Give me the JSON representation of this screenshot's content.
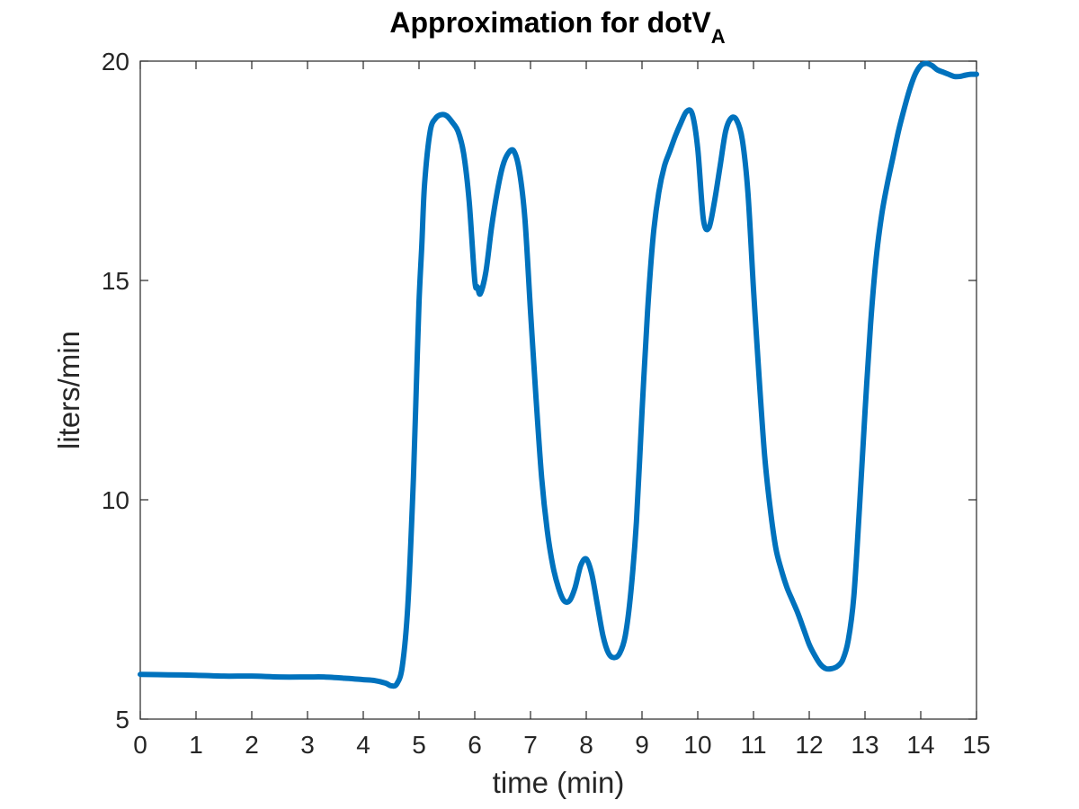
{
  "chart_data": {
    "type": "line",
    "title": "Approximation for dotV",
    "title_subscript": "A",
    "xlabel": "time (min)",
    "ylabel": "liters/min",
    "xlim": [
      0,
      15
    ],
    "ylim": [
      5,
      20
    ],
    "xticks": [
      0,
      1,
      2,
      3,
      4,
      5,
      6,
      7,
      8,
      9,
      10,
      11,
      12,
      13,
      14,
      15
    ],
    "yticks": [
      5,
      10,
      15,
      20
    ],
    "grid": false,
    "legend": "none",
    "colors": {
      "line": "#0072BD",
      "axes": "#262626",
      "background": "#ffffff"
    },
    "series": [
      {
        "x": [
          0,
          0.5,
          1,
          1.5,
          2,
          2.5,
          3,
          3.3,
          3.7,
          4,
          4.2,
          4.4,
          4.5,
          4.6,
          4.7,
          4.8,
          4.9,
          4.95,
          5.0,
          5.05,
          5.1,
          5.2,
          5.3,
          5.4,
          5.5,
          5.6,
          5.7,
          5.8,
          5.9,
          6.0,
          6.05,
          6.1,
          6.2,
          6.3,
          6.4,
          6.5,
          6.6,
          6.7,
          6.8,
          6.9,
          7.0,
          7.1,
          7.2,
          7.3,
          7.4,
          7.5,
          7.6,
          7.7,
          7.8,
          7.9,
          8.0,
          8.1,
          8.2,
          8.3,
          8.4,
          8.5,
          8.6,
          8.7,
          8.8,
          8.9,
          9.0,
          9.1,
          9.2,
          9.3,
          9.4,
          9.5,
          9.6,
          9.7,
          9.8,
          9.9,
          10.0,
          10.1,
          10.2,
          10.3,
          10.4,
          10.5,
          10.6,
          10.7,
          10.8,
          10.9,
          11.0,
          11.1,
          11.2,
          11.3,
          11.4,
          11.5,
          11.6,
          11.7,
          11.8,
          11.9,
          12.0,
          12.1,
          12.2,
          12.3,
          12.4,
          12.5,
          12.6,
          12.7,
          12.8,
          12.9,
          13.0,
          13.1,
          13.2,
          13.3,
          13.4,
          13.5,
          13.6,
          13.7,
          13.8,
          13.9,
          14.0,
          14.1,
          14.2,
          14.3,
          14.4,
          14.5,
          14.6,
          14.7,
          14.8,
          14.9,
          15.0
        ],
        "y": [
          6.02,
          6.01,
          6.0,
          5.98,
          5.98,
          5.96,
          5.96,
          5.96,
          5.93,
          5.9,
          5.88,
          5.82,
          5.76,
          5.8,
          6.2,
          7.6,
          10.5,
          12.5,
          14.5,
          15.8,
          17.2,
          18.4,
          18.7,
          18.78,
          18.75,
          18.6,
          18.4,
          17.9,
          16.8,
          15.0,
          14.85,
          14.7,
          15.2,
          16.2,
          17.0,
          17.6,
          17.9,
          17.95,
          17.5,
          16.4,
          14.3,
          12.3,
          10.5,
          9.3,
          8.5,
          8.0,
          7.7,
          7.7,
          8.0,
          8.5,
          8.65,
          8.3,
          7.6,
          6.9,
          6.5,
          6.4,
          6.5,
          6.9,
          7.9,
          9.5,
          12.0,
          14.3,
          16.0,
          17.0,
          17.6,
          17.95,
          18.3,
          18.6,
          18.85,
          18.8,
          18.0,
          16.4,
          16.2,
          16.8,
          17.6,
          18.4,
          18.7,
          18.65,
          18.2,
          17.0,
          14.8,
          12.8,
          11.0,
          9.8,
          8.9,
          8.4,
          8.0,
          7.7,
          7.4,
          7.05,
          6.7,
          6.45,
          6.25,
          6.15,
          6.15,
          6.2,
          6.35,
          6.8,
          7.8,
          9.8,
          12.0,
          14.0,
          15.5,
          16.5,
          17.2,
          17.8,
          18.4,
          18.9,
          19.35,
          19.7,
          19.9,
          19.95,
          19.9,
          19.8,
          19.75,
          19.7,
          19.65,
          19.65,
          19.68,
          19.7,
          19.7
        ]
      }
    ]
  }
}
